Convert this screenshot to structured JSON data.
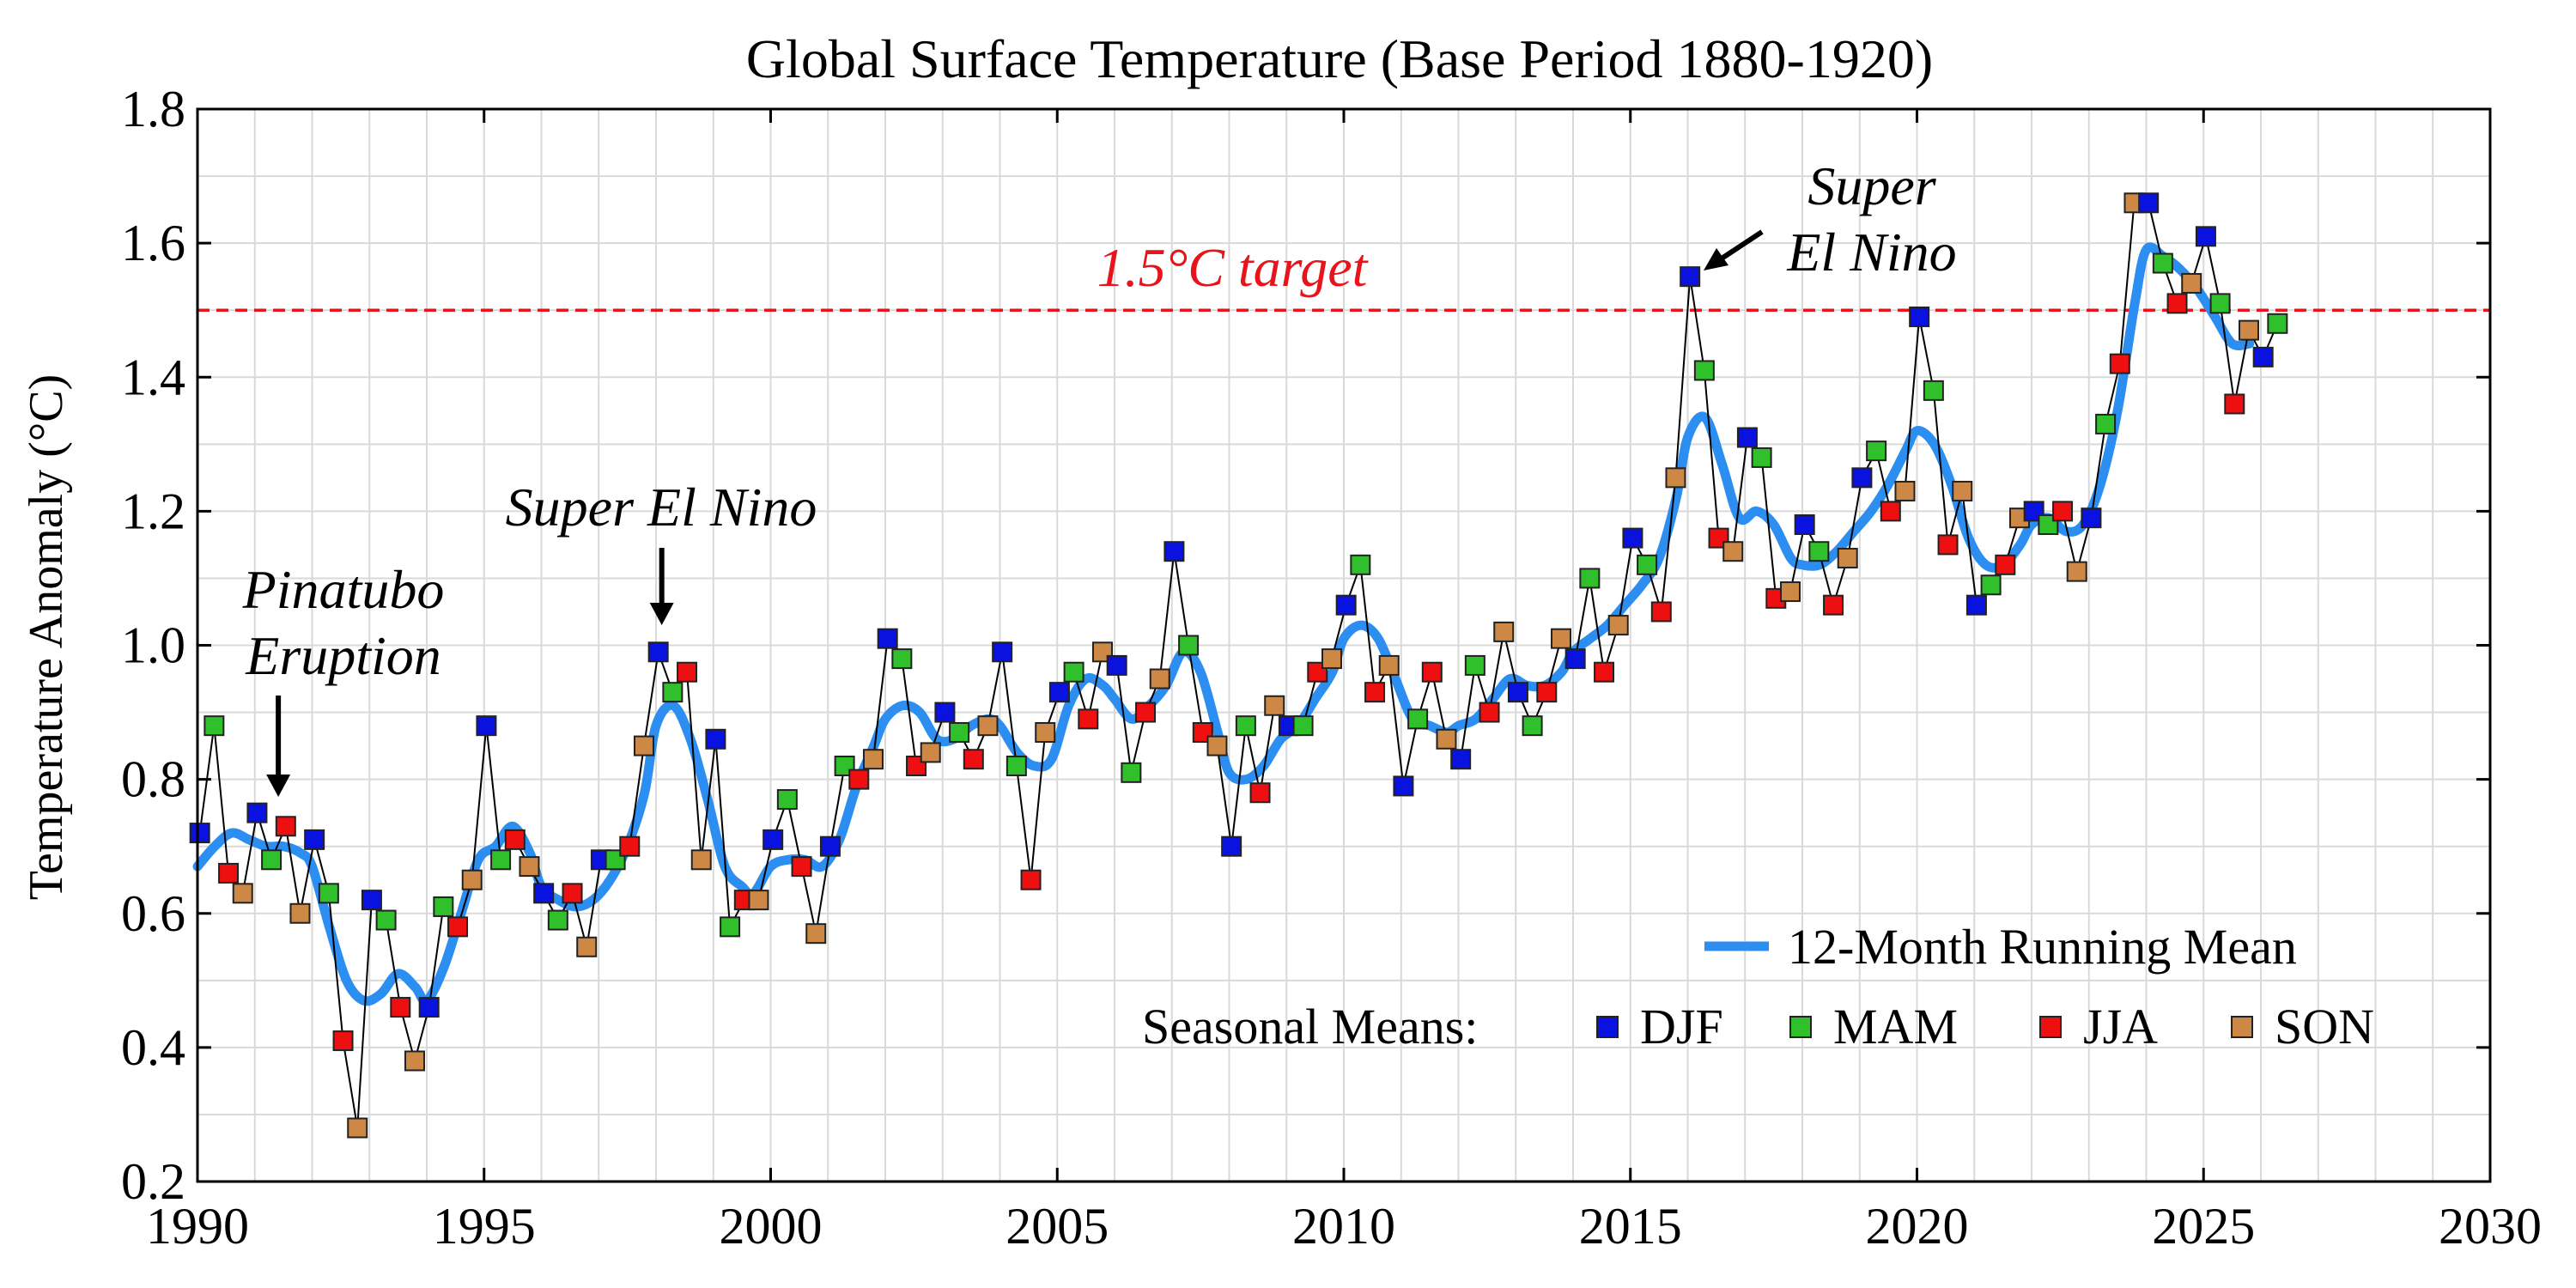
{
  "chart_data": {
    "type": "scatter",
    "title": "Global Surface Temperature (Base Period 1880-1920)",
    "xlabel": "",
    "ylabel": "Temperature Anomaly (°C)",
    "xlim": [
      1990,
      2030
    ],
    "ylim": [
      0.2,
      1.8
    ],
    "x_ticks": [
      1990,
      1995,
      2000,
      2005,
      2010,
      2015,
      2020,
      2025,
      2030
    ],
    "y_ticks": [
      0.2,
      0.4,
      0.6,
      0.8,
      1.0,
      1.2,
      1.4,
      1.6,
      1.8
    ],
    "x_tick_labels": [
      "1990",
      "1995",
      "2000",
      "2005",
      "2010",
      "2015",
      "2020",
      "2025",
      "2030"
    ],
    "y_tick_labels": [
      "0.2",
      "0.4",
      "0.6",
      "0.8",
      "1.0",
      "1.2",
      "1.4",
      "1.6",
      "1.8"
    ],
    "grid": true,
    "target_line": {
      "value": 1.5,
      "label": "1.5°C target",
      "color": "#e8141b"
    },
    "annotations": [
      {
        "text_lines": [
          "Pinatubo",
          "Eruption"
        ],
        "target": [
          1991.5,
          0.73
        ]
      },
      {
        "text_lines": [
          "Super El Nino"
        ],
        "target": [
          1998.1,
          0.99
        ]
      },
      {
        "text_lines": [
          "Super",
          "El Nino"
        ],
        "target": [
          2016.2,
          1.55
        ]
      }
    ],
    "legend": {
      "placement": "bottom-right",
      "line_label": "12-Month Running Mean",
      "seasonal_title": "Seasonal Means:",
      "seasons": [
        "DJF",
        "MAM",
        "JJA",
        "SON"
      ]
    },
    "season_colors": {
      "DJF": "#0a12e0",
      "MAM": "#30c02c",
      "JJA": "#ee1010",
      "SON": "#cc8844"
    },
    "running_mean_color": "#2b8ef0",
    "seasonal_means": [
      [
        1990.04,
        0.72
      ],
      [
        1990.29,
        0.88
      ],
      [
        1990.54,
        0.66
      ],
      [
        1990.79,
        0.63
      ],
      [
        1991.04,
        0.75
      ],
      [
        1991.29,
        0.68
      ],
      [
        1991.54,
        0.73
      ],
      [
        1991.79,
        0.6
      ],
      [
        1992.04,
        0.71
      ],
      [
        1992.29,
        0.63
      ],
      [
        1992.54,
        0.41
      ],
      [
        1992.79,
        0.28
      ],
      [
        1993.04,
        0.62
      ],
      [
        1993.29,
        0.59
      ],
      [
        1993.54,
        0.46
      ],
      [
        1993.79,
        0.38
      ],
      [
        1994.04,
        0.46
      ],
      [
        1994.29,
        0.61
      ],
      [
        1994.54,
        0.58
      ],
      [
        1994.79,
        0.65
      ],
      [
        1995.04,
        0.88
      ],
      [
        1995.29,
        0.68
      ],
      [
        1995.54,
        0.71
      ],
      [
        1995.79,
        0.67
      ],
      [
        1996.04,
        0.63
      ],
      [
        1996.29,
        0.59
      ],
      [
        1996.54,
        0.63
      ],
      [
        1996.79,
        0.55
      ],
      [
        1997.04,
        0.68
      ],
      [
        1997.29,
        0.68
      ],
      [
        1997.54,
        0.7
      ],
      [
        1997.79,
        0.85
      ],
      [
        1998.04,
        0.99
      ],
      [
        1998.29,
        0.93
      ],
      [
        1998.54,
        0.96
      ],
      [
        1998.79,
        0.68
      ],
      [
        1999.04,
        0.86
      ],
      [
        1999.29,
        0.58
      ],
      [
        1999.54,
        0.62
      ],
      [
        1999.79,
        0.62
      ],
      [
        2000.04,
        0.71
      ],
      [
        2000.29,
        0.77
      ],
      [
        2000.54,
        0.67
      ],
      [
        2000.79,
        0.57
      ],
      [
        2001.04,
        0.7
      ],
      [
        2001.29,
        0.82
      ],
      [
        2001.54,
        0.8
      ],
      [
        2001.79,
        0.83
      ],
      [
        2002.04,
        1.01
      ],
      [
        2002.29,
        0.98
      ],
      [
        2002.54,
        0.82
      ],
      [
        2002.79,
        0.84
      ],
      [
        2003.04,
        0.9
      ],
      [
        2003.29,
        0.87
      ],
      [
        2003.54,
        0.83
      ],
      [
        2003.79,
        0.88
      ],
      [
        2004.04,
        0.99
      ],
      [
        2004.29,
        0.82
      ],
      [
        2004.54,
        0.65
      ],
      [
        2004.79,
        0.87
      ],
      [
        2005.04,
        0.93
      ],
      [
        2005.29,
        0.96
      ],
      [
        2005.54,
        0.89
      ],
      [
        2005.79,
        0.99
      ],
      [
        2006.04,
        0.97
      ],
      [
        2006.29,
        0.81
      ],
      [
        2006.54,
        0.9
      ],
      [
        2006.79,
        0.95
      ],
      [
        2007.04,
        1.14
      ],
      [
        2007.29,
        1.0
      ],
      [
        2007.54,
        0.87
      ],
      [
        2007.79,
        0.85
      ],
      [
        2008.04,
        0.7
      ],
      [
        2008.29,
        0.88
      ],
      [
        2008.54,
        0.78
      ],
      [
        2008.79,
        0.91
      ],
      [
        2009.04,
        0.88
      ],
      [
        2009.29,
        0.88
      ],
      [
        2009.54,
        0.96
      ],
      [
        2009.79,
        0.98
      ],
      [
        2010.04,
        1.06
      ],
      [
        2010.29,
        1.12
      ],
      [
        2010.54,
        0.93
      ],
      [
        2010.79,
        0.97
      ],
      [
        2011.04,
        0.79
      ],
      [
        2011.29,
        0.89
      ],
      [
        2011.54,
        0.96
      ],
      [
        2011.79,
        0.86
      ],
      [
        2012.04,
        0.83
      ],
      [
        2012.29,
        0.97
      ],
      [
        2012.54,
        0.9
      ],
      [
        2012.79,
        1.02
      ],
      [
        2013.04,
        0.93
      ],
      [
        2013.29,
        0.88
      ],
      [
        2013.54,
        0.93
      ],
      [
        2013.79,
        1.01
      ],
      [
        2014.04,
        0.98
      ],
      [
        2014.29,
        1.1
      ],
      [
        2014.54,
        0.96
      ],
      [
        2014.79,
        1.03
      ],
      [
        2015.04,
        1.16
      ],
      [
        2015.29,
        1.12
      ],
      [
        2015.54,
        1.05
      ],
      [
        2015.79,
        1.25
      ],
      [
        2016.04,
        1.55
      ],
      [
        2016.29,
        1.41
      ],
      [
        2016.54,
        1.16
      ],
      [
        2016.79,
        1.14
      ],
      [
        2017.04,
        1.31
      ],
      [
        2017.29,
        1.28
      ],
      [
        2017.54,
        1.07
      ],
      [
        2017.79,
        1.08
      ],
      [
        2018.04,
        1.18
      ],
      [
        2018.29,
        1.14
      ],
      [
        2018.54,
        1.06
      ],
      [
        2018.79,
        1.13
      ],
      [
        2019.04,
        1.25
      ],
      [
        2019.29,
        1.29
      ],
      [
        2019.54,
        1.2
      ],
      [
        2019.79,
        1.23
      ],
      [
        2020.04,
        1.49
      ],
      [
        2020.29,
        1.38
      ],
      [
        2020.54,
        1.15
      ],
      [
        2020.79,
        1.23
      ],
      [
        2021.04,
        1.06
      ],
      [
        2021.29,
        1.09
      ],
      [
        2021.54,
        1.12
      ],
      [
        2021.79,
        1.19
      ],
      [
        2022.04,
        1.2
      ],
      [
        2022.29,
        1.18
      ],
      [
        2022.54,
        1.2
      ],
      [
        2022.79,
        1.11
      ],
      [
        2023.04,
        1.19
      ],
      [
        2023.29,
        1.33
      ],
      [
        2023.54,
        1.42
      ],
      [
        2023.79,
        1.66
      ],
      [
        2024.04,
        1.66
      ],
      [
        2024.29,
        1.57
      ],
      [
        2024.54,
        1.51
      ],
      [
        2024.79,
        1.54
      ],
      [
        2025.04,
        1.61
      ],
      [
        2025.29,
        1.51
      ],
      [
        2025.54,
        1.36
      ],
      [
        2025.79,
        1.47
      ],
      [
        2026.04,
        1.43
      ],
      [
        2026.29,
        1.48
      ]
    ],
    "running_mean": [
      [
        1990.0,
        0.67
      ],
      [
        1990.3,
        0.7
      ],
      [
        1990.6,
        0.72
      ],
      [
        1990.9,
        0.71
      ],
      [
        1991.2,
        0.7
      ],
      [
        1991.5,
        0.7
      ],
      [
        1991.8,
        0.69
      ],
      [
        1992.0,
        0.67
      ],
      [
        1992.3,
        0.58
      ],
      [
        1992.6,
        0.5
      ],
      [
        1992.9,
        0.47
      ],
      [
        1993.2,
        0.48
      ],
      [
        1993.5,
        0.51
      ],
      [
        1993.8,
        0.49
      ],
      [
        1994.0,
        0.47
      ],
      [
        1994.3,
        0.52
      ],
      [
        1994.6,
        0.6
      ],
      [
        1994.9,
        0.68
      ],
      [
        1995.2,
        0.7
      ],
      [
        1995.5,
        0.73
      ],
      [
        1995.8,
        0.69
      ],
      [
        1996.0,
        0.64
      ],
      [
        1996.3,
        0.62
      ],
      [
        1996.6,
        0.61
      ],
      [
        1996.9,
        0.62
      ],
      [
        1997.2,
        0.65
      ],
      [
        1997.5,
        0.7
      ],
      [
        1997.8,
        0.78
      ],
      [
        1998.0,
        0.88
      ],
      [
        1998.3,
        0.91
      ],
      [
        1998.6,
        0.86
      ],
      [
        1998.9,
        0.77
      ],
      [
        1999.2,
        0.67
      ],
      [
        1999.5,
        0.64
      ],
      [
        1999.7,
        0.63
      ],
      [
        2000.0,
        0.67
      ],
      [
        2000.3,
        0.68
      ],
      [
        2000.6,
        0.68
      ],
      [
        2000.9,
        0.67
      ],
      [
        2001.2,
        0.71
      ],
      [
        2001.5,
        0.79
      ],
      [
        2001.8,
        0.85
      ],
      [
        2002.0,
        0.89
      ],
      [
        2002.3,
        0.91
      ],
      [
        2002.6,
        0.9
      ],
      [
        2002.9,
        0.86
      ],
      [
        2003.2,
        0.86
      ],
      [
        2003.5,
        0.88
      ],
      [
        2003.8,
        0.89
      ],
      [
        2004.0,
        0.88
      ],
      [
        2004.3,
        0.84
      ],
      [
        2004.6,
        0.82
      ],
      [
        2004.9,
        0.83
      ],
      [
        2005.2,
        0.91
      ],
      [
        2005.5,
        0.95
      ],
      [
        2005.8,
        0.94
      ],
      [
        2006.0,
        0.92
      ],
      [
        2006.3,
        0.89
      ],
      [
        2006.6,
        0.91
      ],
      [
        2006.9,
        0.94
      ],
      [
        2007.2,
        0.99
      ],
      [
        2007.5,
        0.96
      ],
      [
        2007.8,
        0.87
      ],
      [
        2008.0,
        0.81
      ],
      [
        2008.3,
        0.8
      ],
      [
        2008.6,
        0.82
      ],
      [
        2008.9,
        0.86
      ],
      [
        2009.2,
        0.88
      ],
      [
        2009.5,
        0.92
      ],
      [
        2009.8,
        0.96
      ],
      [
        2010.0,
        1.01
      ],
      [
        2010.3,
        1.03
      ],
      [
        2010.6,
        1.01
      ],
      [
        2010.9,
        0.95
      ],
      [
        2011.2,
        0.89
      ],
      [
        2011.5,
        0.88
      ],
      [
        2011.8,
        0.87
      ],
      [
        2012.0,
        0.88
      ],
      [
        2012.3,
        0.89
      ],
      [
        2012.6,
        0.92
      ],
      [
        2012.9,
        0.95
      ],
      [
        2013.2,
        0.94
      ],
      [
        2013.5,
        0.94
      ],
      [
        2013.8,
        0.96
      ],
      [
        2014.0,
        0.99
      ],
      [
        2014.3,
        1.01
      ],
      [
        2014.6,
        1.03
      ],
      [
        2014.9,
        1.06
      ],
      [
        2015.2,
        1.09
      ],
      [
        2015.5,
        1.13
      ],
      [
        2015.8,
        1.22
      ],
      [
        2016.0,
        1.31
      ],
      [
        2016.3,
        1.34
      ],
      [
        2016.6,
        1.27
      ],
      [
        2016.9,
        1.19
      ],
      [
        2017.2,
        1.2
      ],
      [
        2017.5,
        1.18
      ],
      [
        2017.8,
        1.13
      ],
      [
        2018.0,
        1.12
      ],
      [
        2018.3,
        1.12
      ],
      [
        2018.6,
        1.14
      ],
      [
        2018.9,
        1.17
      ],
      [
        2019.2,
        1.2
      ],
      [
        2019.5,
        1.24
      ],
      [
        2019.8,
        1.29
      ],
      [
        2020.0,
        1.32
      ],
      [
        2020.3,
        1.3
      ],
      [
        2020.6,
        1.24
      ],
      [
        2020.9,
        1.16
      ],
      [
        2021.2,
        1.12
      ],
      [
        2021.5,
        1.12
      ],
      [
        2021.8,
        1.15
      ],
      [
        2022.0,
        1.18
      ],
      [
        2022.3,
        1.19
      ],
      [
        2022.6,
        1.17
      ],
      [
        2022.9,
        1.18
      ],
      [
        2023.2,
        1.24
      ],
      [
        2023.5,
        1.35
      ],
      [
        2023.8,
        1.51
      ],
      [
        2024.0,
        1.59
      ],
      [
        2024.3,
        1.58
      ],
      [
        2024.6,
        1.56
      ],
      [
        2024.9,
        1.53
      ],
      [
        2025.2,
        1.49
      ],
      [
        2025.5,
        1.45
      ],
      [
        2025.8,
        1.45
      ]
    ]
  }
}
